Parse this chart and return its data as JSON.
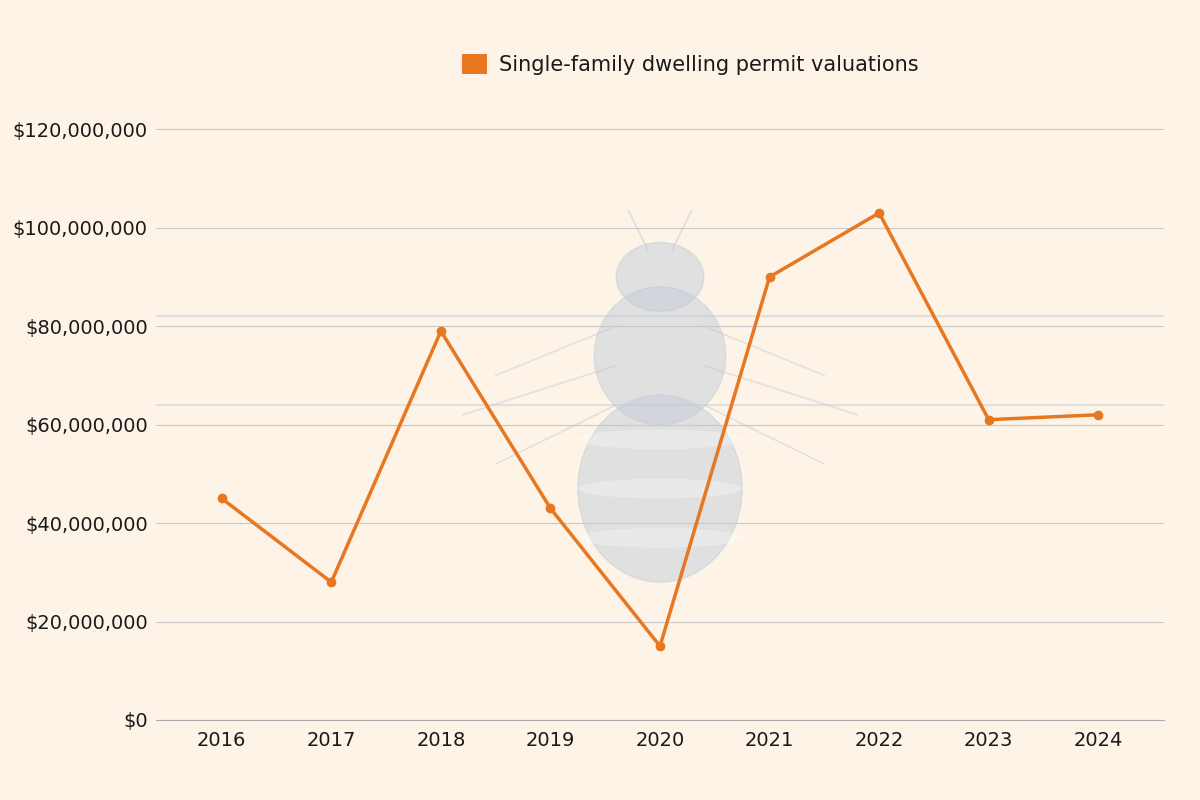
{
  "years": [
    2016,
    2017,
    2018,
    2019,
    2020,
    2021,
    2022,
    2023,
    2024
  ],
  "values": [
    45000000,
    28000000,
    79000000,
    43000000,
    15000000,
    90000000,
    103000000,
    61000000,
    62000000
  ],
  "line_color": "#E87722",
  "marker_color": "#E87722",
  "background_color": "#FDF4E7",
  "grid_color": "#C8C8C8",
  "legend_label": "Single-family dwelling permit valuations",
  "ylim": [
    0,
    130000000
  ],
  "yticks": [
    0,
    20000000,
    40000000,
    60000000,
    80000000,
    100000000,
    120000000
  ],
  "tick_fontsize": 14,
  "legend_fontsize": 15,
  "line_width": 2.5,
  "marker_size": 6,
  "xlim_left": 2015.4,
  "xlim_right": 2024.6
}
